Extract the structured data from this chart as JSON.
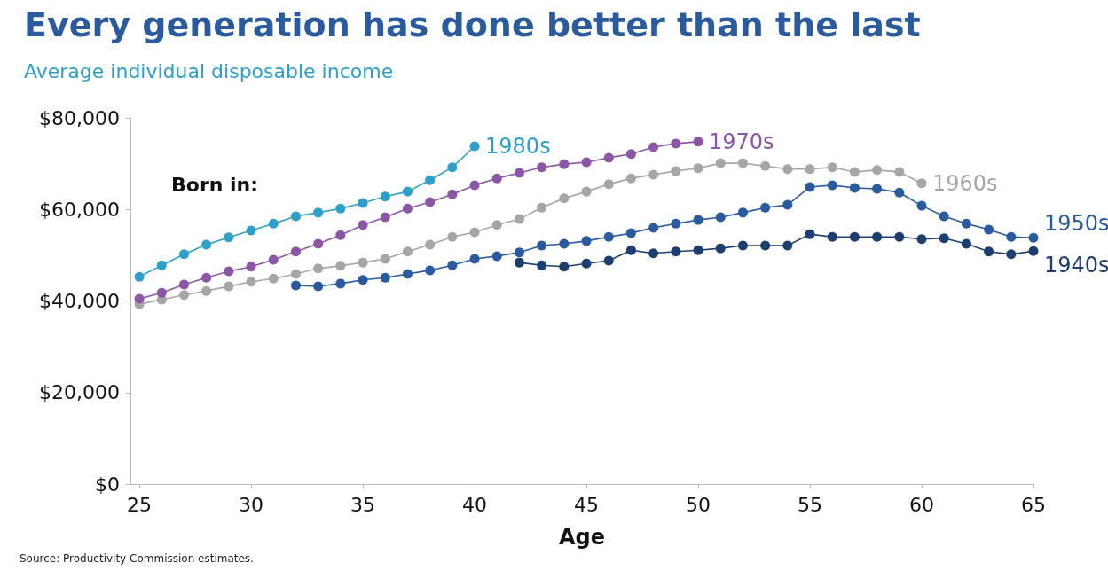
{
  "chart_data": {
    "type": "line",
    "title": "Every generation has done better than the last",
    "subtitle": "Average individual disposable income",
    "xlabel": "Age",
    "annotations": [
      "Born in:",
      "Source: Productivity Commission estimates."
    ],
    "xlim": [
      24.6,
      65
    ],
    "xticks": [
      25,
      30,
      35,
      40,
      45,
      50,
      55,
      60,
      65
    ],
    "ylim": [
      0,
      80000
    ],
    "yticks": [
      {
        "value": 0,
        "label": "$0"
      },
      {
        "value": 20000,
        "label": "$20,000"
      },
      {
        "value": 40000,
        "label": "$40,000"
      },
      {
        "value": 60000,
        "label": "$60,000"
      },
      {
        "value": 80000,
        "label": "$80,000"
      }
    ],
    "grid": false,
    "legend": false,
    "marker": "circle",
    "line_style": "solid",
    "series": [
      {
        "name": "1980s",
        "color": "#2e9fc8",
        "x": [
          25,
          26,
          27,
          28,
          29,
          30,
          31,
          32,
          33,
          34,
          35,
          36,
          37,
          38,
          39,
          40
        ],
        "values": [
          45300,
          47800,
          50200,
          52300,
          53900,
          55400,
          56900,
          58500,
          59300,
          60200,
          61400,
          62800,
          63900,
          66400,
          69200,
          73800
        ]
      },
      {
        "name": "1970s",
        "color": "#8c56a6",
        "x": [
          25,
          26,
          27,
          28,
          29,
          30,
          31,
          32,
          33,
          34,
          35,
          36,
          37,
          38,
          39,
          40,
          41,
          42,
          43,
          44,
          45,
          46,
          47,
          48,
          49,
          50
        ],
        "values": [
          40500,
          41800,
          43600,
          45100,
          46500,
          47500,
          49000,
          50800,
          52500,
          54400,
          56600,
          58300,
          60200,
          61600,
          63300,
          65300,
          66800,
          68000,
          69200,
          69900,
          70300,
          71300,
          72100,
          73600,
          74400,
          74800
        ]
      },
      {
        "name": "1960s",
        "color": "#a6a6a6",
        "x": [
          25,
          26,
          27,
          28,
          29,
          30,
          31,
          32,
          33,
          34,
          35,
          36,
          37,
          38,
          39,
          40,
          41,
          42,
          43,
          44,
          45,
          46,
          47,
          48,
          49,
          50,
          51,
          52,
          53,
          54,
          55,
          56,
          57,
          58,
          59,
          60
        ],
        "values": [
          39300,
          40300,
          41300,
          42200,
          43200,
          44200,
          44900,
          45900,
          47100,
          47700,
          48400,
          49200,
          50800,
          52300,
          54000,
          55000,
          56600,
          57900,
          60400,
          62400,
          63900,
          65500,
          66800,
          67600,
          68400,
          69000,
          70100,
          70100,
          69500,
          68800,
          68800,
          69200,
          68200,
          68600,
          68200,
          65700
        ]
      },
      {
        "name": "1950s",
        "color": "#2a5b9e",
        "x": [
          32,
          33,
          34,
          35,
          36,
          37,
          38,
          39,
          40,
          41,
          42,
          43,
          44,
          45,
          46,
          47,
          48,
          49,
          50,
          51,
          52,
          53,
          54,
          55,
          56,
          57,
          58,
          59,
          60,
          61,
          62,
          63,
          64,
          65
        ],
        "values": [
          43400,
          43200,
          43800,
          44600,
          45100,
          45900,
          46700,
          47800,
          49200,
          49800,
          50600,
          52100,
          52500,
          53100,
          54000,
          54800,
          56000,
          56900,
          57700,
          58300,
          59300,
          60400,
          61000,
          64900,
          65300,
          64700,
          64500,
          63700,
          60800,
          58500,
          56900,
          55600,
          54000,
          53800
        ]
      },
      {
        "name": "1940s",
        "color": "#1d3f70",
        "x": [
          42,
          43,
          44,
          45,
          46,
          47,
          48,
          49,
          50,
          51,
          52,
          53,
          54,
          55,
          56,
          57,
          58,
          59,
          60,
          61,
          62,
          63,
          64,
          65
        ],
        "values": [
          48400,
          47800,
          47500,
          48200,
          48800,
          51100,
          50400,
          50800,
          51100,
          51500,
          52100,
          52100,
          52100,
          54600,
          54000,
          54000,
          54000,
          54000,
          53500,
          53700,
          52500,
          50800,
          50200,
          50900
        ]
      }
    ]
  }
}
